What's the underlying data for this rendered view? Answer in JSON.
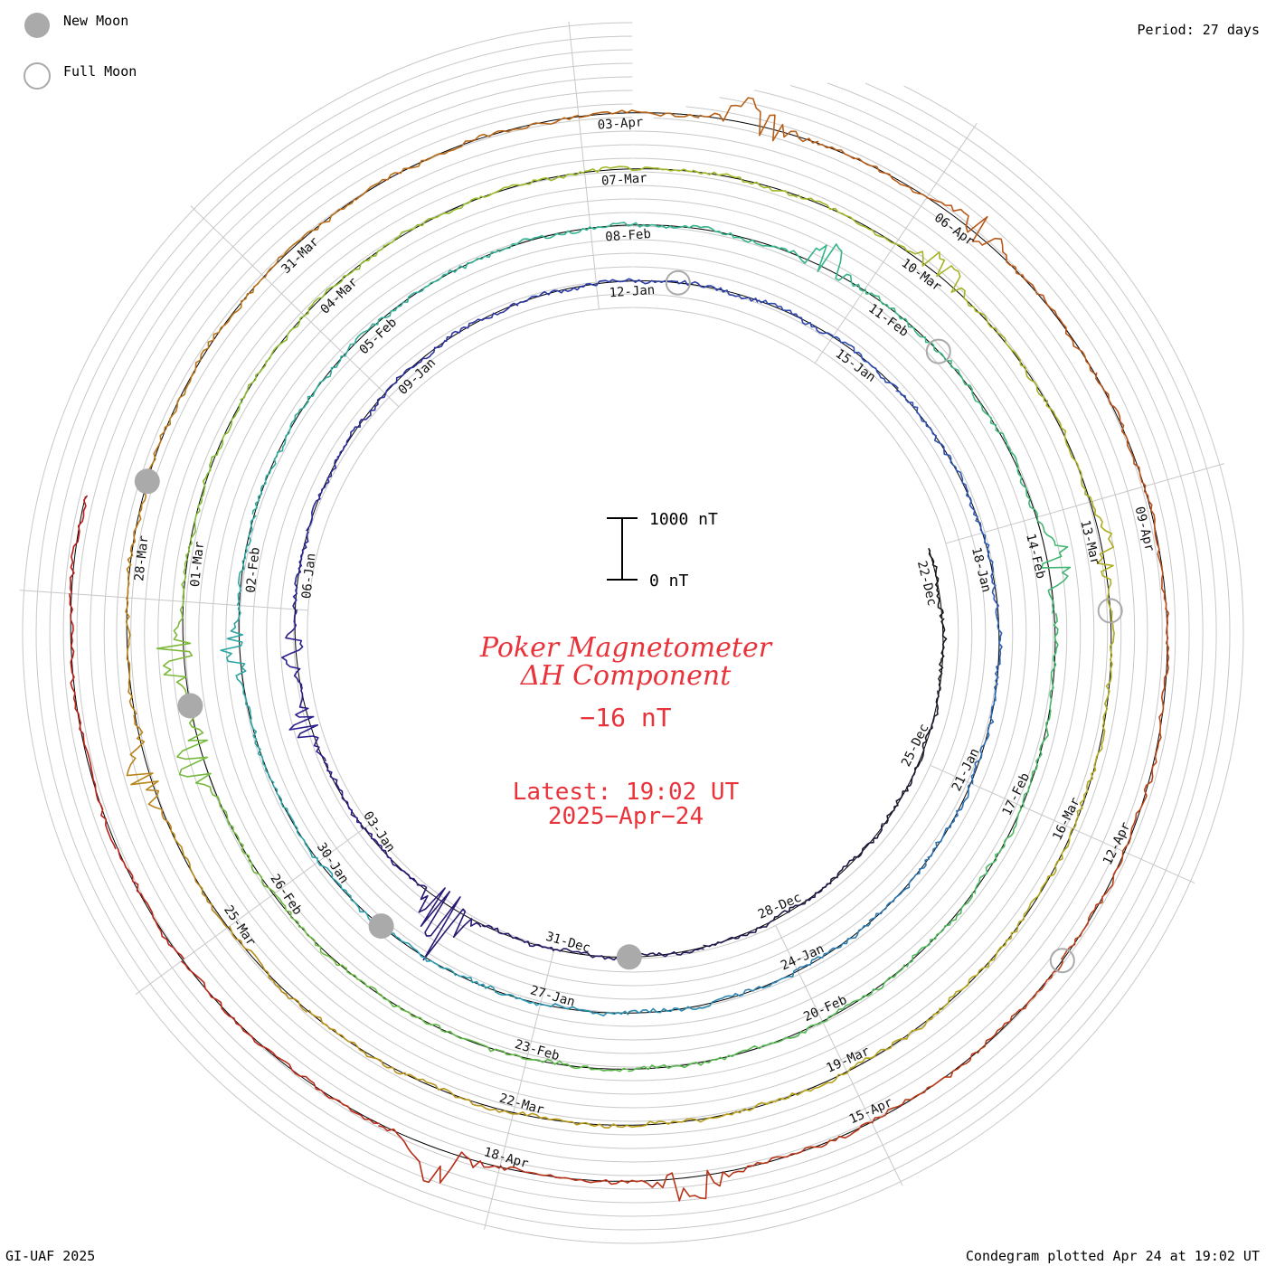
{
  "header": {
    "period_label": "Period: 27 days",
    "legend": [
      {
        "label": "New Moon",
        "icon": "new-moon-icon",
        "style": "filled-gray"
      },
      {
        "label": "Full Moon",
        "icon": "full-moon-icon",
        "style": "open-gray"
      }
    ]
  },
  "footer": {
    "credit": "GI-UAF 2025",
    "plotted": "Condegram plotted Apr 24 at 19:02 UT"
  },
  "center": {
    "title_line1": "Poker Magnetometer",
    "title_line2": "ΔH Component",
    "current_value": "−16 nT",
    "latest_label": "Latest: 19:02 UT",
    "latest_date": "2025−Apr−24"
  },
  "scale_bar": {
    "top_label": "1000 nT",
    "bottom_label": "0 nT",
    "top_value_nT": 1000,
    "bottom_value_nT": 0
  },
  "chart_data": {
    "type": "line",
    "layout": "spiral condegram (polar, one revolution per period)",
    "instrument": "Poker Magnetometer",
    "component": "ΔH",
    "period_days": 27,
    "start_date": "2024-12-22",
    "end_date": "2025-04-24",
    "latest_time_ut": "19:02",
    "latest_value_nT": -16,
    "units": "nT",
    "revolutions": 5,
    "colors": [
      "#1a1a1a",
      "#2a1a8a",
      "#2f4fb5",
      "#2a9fb0",
      "#35b58a",
      "#5bb84a",
      "#9dbb2a",
      "#b8a21a",
      "#b8701a",
      "#b8401a",
      "#b81a1a"
    ],
    "grid": true,
    "date_ticks": [
      {
        "rev": 0,
        "labels": [
          "22-Dec",
          "25-Dec",
          "28-Dec",
          "31-Dec",
          "03-Jan",
          "06-Jan",
          "09-Jan",
          "12-Jan",
          "15-Jan"
        ]
      },
      {
        "rev": 1,
        "labels": [
          "18-Jan",
          "21-Jan",
          "24-Jan",
          "27-Jan",
          "30-Jan",
          "02-Feb",
          "05-Feb",
          "08-Feb",
          "11-Feb"
        ]
      },
      {
        "rev": 2,
        "labels": [
          "14-Feb",
          "17-Feb",
          "20-Feb",
          "23-Feb",
          "26-Feb",
          "01-Mar",
          "04-Mar",
          "07-Mar",
          "10-Mar"
        ]
      },
      {
        "rev": 3,
        "labels": [
          "13-Mar",
          "16-Mar",
          "19-Mar",
          "22-Mar",
          "25-Mar",
          "28-Mar",
          "31-Mar",
          "03-Apr",
          "06-Apr"
        ]
      },
      {
        "rev": 4,
        "labels": [
          "09-Apr",
          "12-Apr",
          "15-Apr",
          "18-Apr"
        ]
      }
    ],
    "new_moons": [
      "2024-12-30",
      "2025-01-29",
      "2025-02-28",
      "2025-03-29"
    ],
    "full_moons": [
      "2025-01-13",
      "2025-02-12",
      "2025-03-14",
      "2025-04-13"
    ],
    "disturbances": [
      {
        "date": "2025-01-01",
        "peak_nT": 1150
      },
      {
        "date": "2025-01-04",
        "peak_nT": 420
      },
      {
        "date": "2025-01-05",
        "peak_nT": 300
      },
      {
        "date": "2025-02-01",
        "peak_nT": 380
      },
      {
        "date": "2025-02-10",
        "peak_nT": 480
      },
      {
        "date": "2025-02-14",
        "peak_nT": 520
      },
      {
        "date": "2025-02-27",
        "peak_nT": 520
      },
      {
        "date": "2025-02-28",
        "peak_nT": 560
      },
      {
        "date": "2025-03-10",
        "peak_nT": 420
      },
      {
        "date": "2025-03-13",
        "peak_nT": 300
      },
      {
        "date": "2025-03-26",
        "peak_nT": 420
      },
      {
        "date": "2025-04-04",
        "peak_nT": 600
      },
      {
        "date": "2025-04-06",
        "peak_nT": 420
      },
      {
        "date": "2025-04-16",
        "peak_nT": 500
      },
      {
        "date": "2025-04-18",
        "peak_nT": 620
      }
    ]
  }
}
